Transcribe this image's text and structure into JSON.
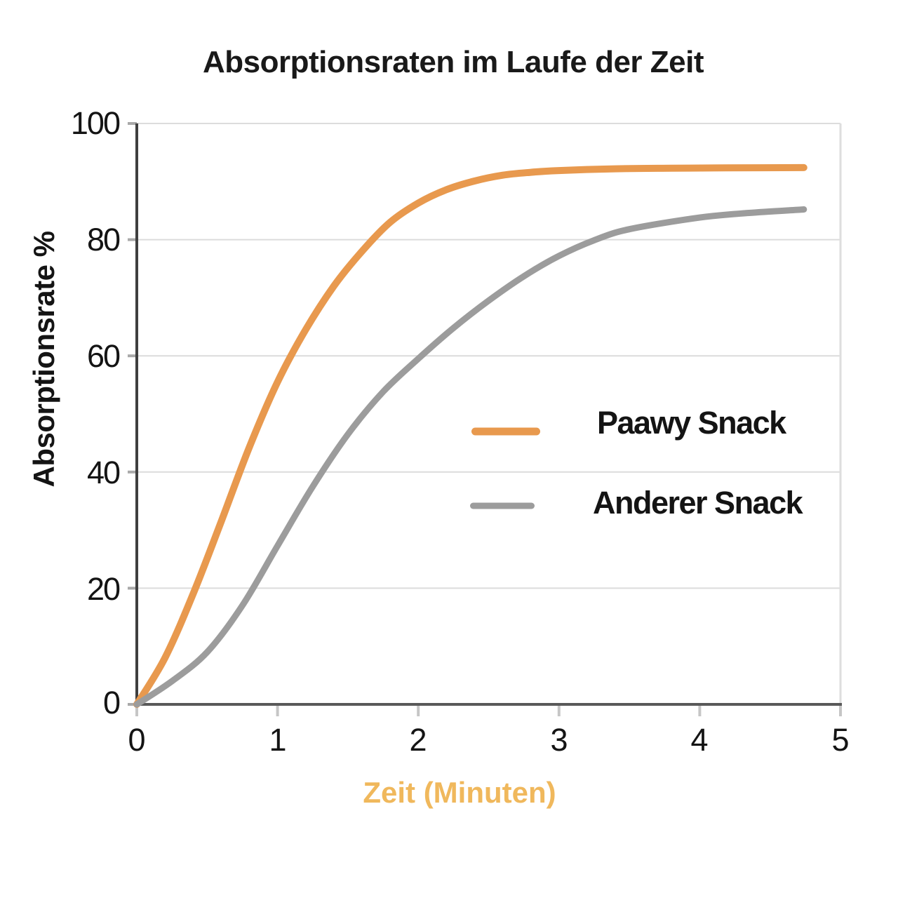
{
  "title": "Absorptionsraten im Laufe der Zeit",
  "chart_data": {
    "type": "line",
    "title": "Absorptionsraten im Laufe der Zeit",
    "xlabel": "Zeit (Minuten)",
    "ylabel": "Absorptionsrate %",
    "xlim": [
      0,
      5
    ],
    "ylim": [
      0,
      100
    ],
    "xticks": [
      "0",
      "1",
      "2",
      "3",
      "4",
      "5"
    ],
    "yticks": [
      "0",
      "20",
      "40",
      "60",
      "80",
      "100"
    ],
    "grid": "horizontal",
    "legend_position": "center-right",
    "series": [
      {
        "name": "Paawy Snack",
        "color": "#E8994E",
        "width": 10,
        "x": [
          0,
          0.2,
          0.4,
          0.6,
          0.8,
          1.0,
          1.2,
          1.4,
          1.6,
          1.8,
          2.0,
          2.2,
          2.4,
          2.6,
          2.8,
          3.0,
          3.4,
          3.8,
          4.2,
          4.74
        ],
        "y": [
          0,
          8,
          19,
          31.5,
          44.3,
          55.5,
          64.5,
          72,
          78,
          83,
          86.3,
          88.6,
          90.1,
          91.1,
          91.6,
          91.9,
          92.2,
          92.3,
          92.35,
          92.4
        ]
      },
      {
        "name": "Anderer Snack",
        "color": "#9C9C9C",
        "width": 9,
        "x": [
          0,
          0.25,
          0.5,
          0.75,
          1.0,
          1.25,
          1.5,
          1.75,
          2.0,
          2.25,
          2.5,
          2.75,
          3.0,
          3.25,
          3.5,
          4.0,
          4.35,
          4.74
        ],
        "y": [
          0,
          4,
          9,
          17,
          27.3,
          37.5,
          46.5,
          53.8,
          59.5,
          64.8,
          69.5,
          73.7,
          77.2,
          79.9,
          81.8,
          83.8,
          84.6,
          85.2
        ]
      }
    ]
  },
  "colors": {
    "xlabel_color": "#F0B85C",
    "axis_dark": "#595959",
    "grid": "#DCDCDC"
  }
}
